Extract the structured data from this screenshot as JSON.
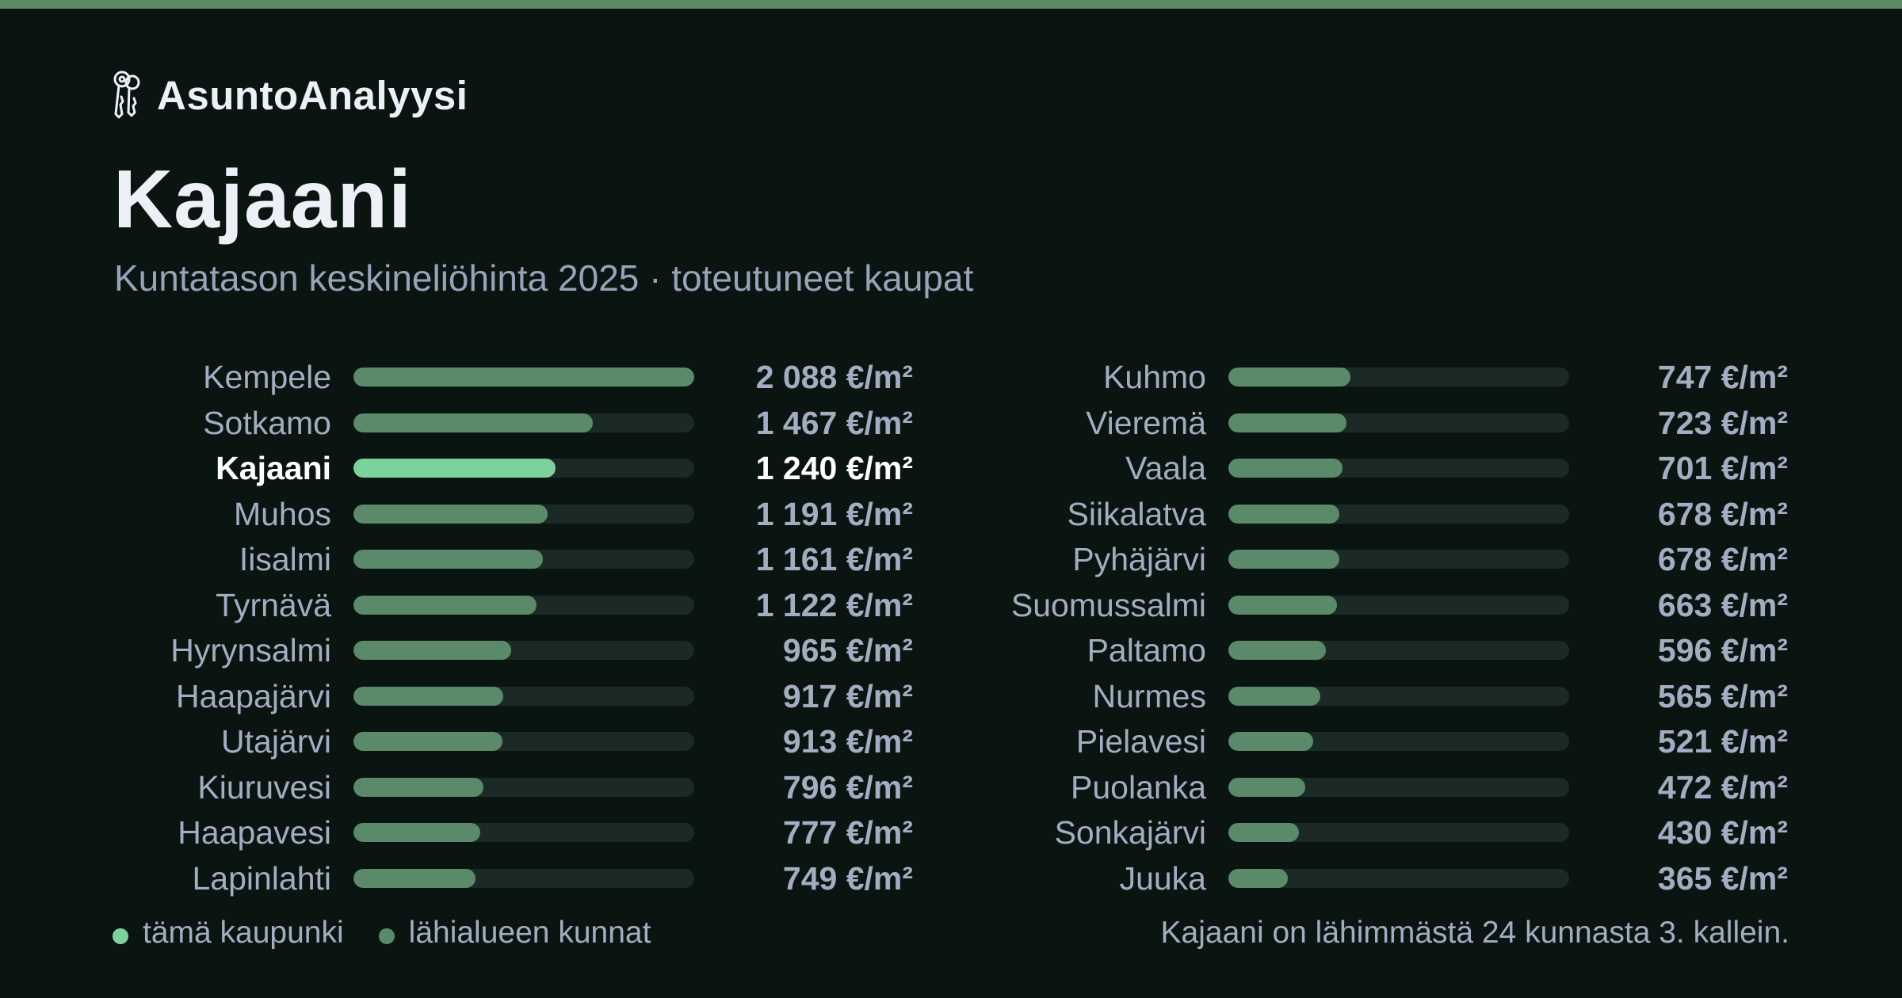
{
  "brand": {
    "name": "AsuntoAnalyysi",
    "icon": "keys-icon"
  },
  "colors": {
    "background": "#0a1512",
    "accent_bar": "#5b8a64",
    "highlight": "#7dd29c",
    "bar": "#5b8a6a",
    "track": "#1b2a25"
  },
  "title": "Kajaani",
  "subtitle": "Kuntatason keskineliöhinta 2025 · toteutuneet kaupat",
  "legend": {
    "this_city": "tämä kaupunki",
    "nearby": "lähialueen kunnat"
  },
  "footnote": "Kajaani on lähimmästä 24 kunnasta 3. kallein.",
  "chart_data": {
    "type": "bar",
    "orientation": "horizontal",
    "unit": "€/m²",
    "highlight": "Kajaani",
    "xlim": [
      0,
      2088
    ],
    "categories": [
      "Kempele",
      "Sotkamo",
      "Kajaani",
      "Muhos",
      "Iisalmi",
      "Tyrnävä",
      "Hyrynsalmi",
      "Haapajärvi",
      "Utajärvi",
      "Kiuruvesi",
      "Haapavesi",
      "Lapinlahti",
      "Kuhmo",
      "Vieremä",
      "Vaala",
      "Siikalatva",
      "Pyhäjärvi",
      "Suomussalmi",
      "Paltamo",
      "Nurmes",
      "Pielavesi",
      "Puolanka",
      "Sonkajärvi",
      "Juuka"
    ],
    "values": [
      2088,
      1467,
      1240,
      1191,
      1161,
      1122,
      965,
      917,
      913,
      796,
      777,
      749,
      747,
      723,
      701,
      678,
      678,
      663,
      596,
      565,
      521,
      472,
      430,
      365
    ],
    "labels": [
      "2 088 €/m²",
      "1 467 €/m²",
      "1 240 €/m²",
      "1 191 €/m²",
      "1 161 €/m²",
      "1 122 €/m²",
      "965 €/m²",
      "917 €/m²",
      "913 €/m²",
      "796 €/m²",
      "777 €/m²",
      "749 €/m²",
      "747 €/m²",
      "723 €/m²",
      "701 €/m²",
      "678 €/m²",
      "678 €/m²",
      "663 €/m²",
      "596 €/m²",
      "565 €/m²",
      "521 €/m²",
      "472 €/m²",
      "430 €/m²",
      "365 €/m²"
    ]
  }
}
